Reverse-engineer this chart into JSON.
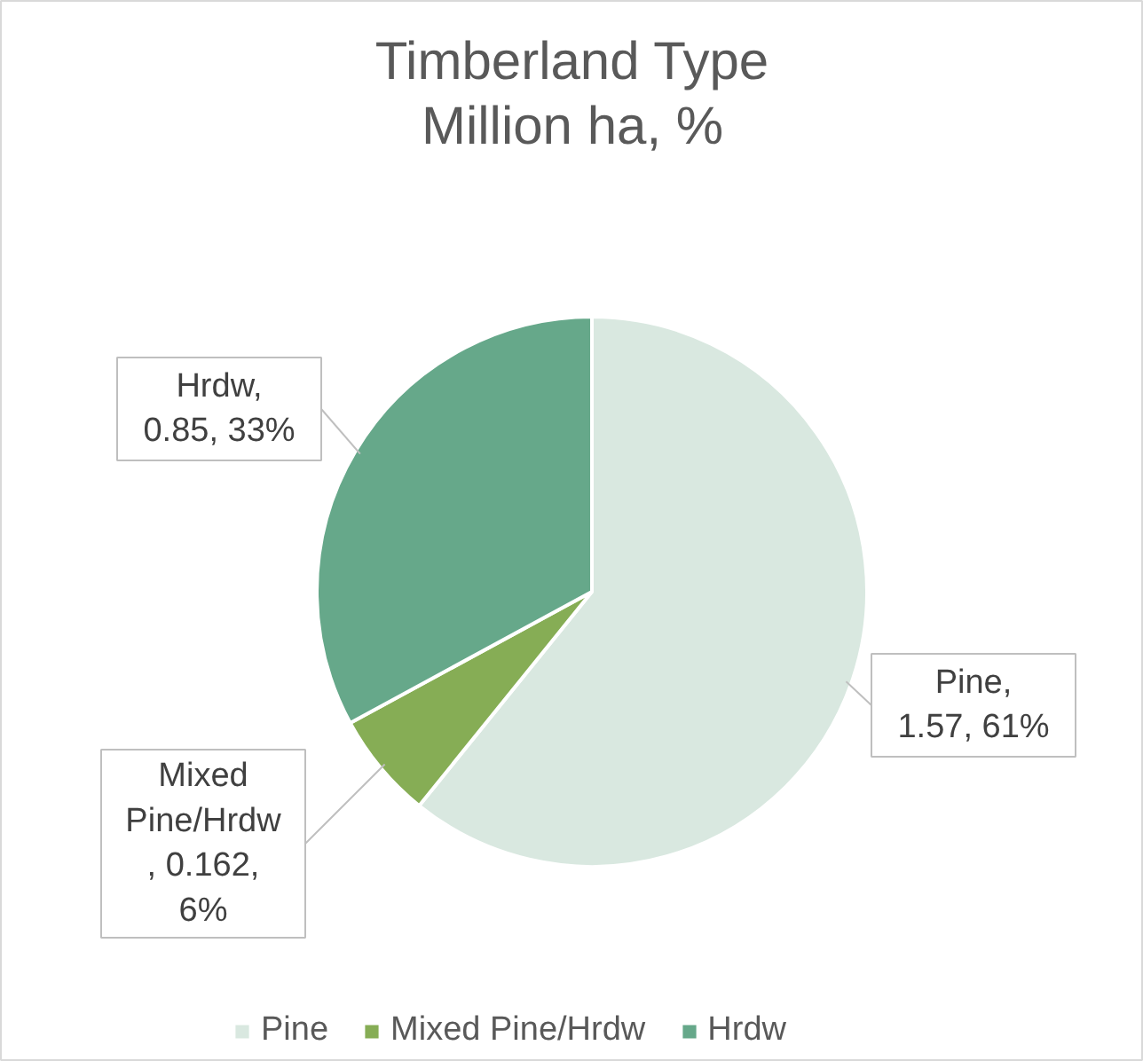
{
  "chart_data": {
    "type": "pie",
    "title": "Timberland Type\nMillion ha, %",
    "categories": [
      "Pine",
      "Mixed Pine/Hrdw",
      "Hrdw"
    ],
    "values": [
      1.57,
      0.162,
      0.85
    ],
    "colors": [
      "#d9e8e0",
      "#86ad55",
      "#66a88a"
    ],
    "value_labels": [
      "Pine,\n1.57, 61%",
      "Mixed\nPine/Hrdw\n, 0.162,\n6%",
      "Hrdw,\n0.85, 33%"
    ],
    "legend": "bottom"
  }
}
